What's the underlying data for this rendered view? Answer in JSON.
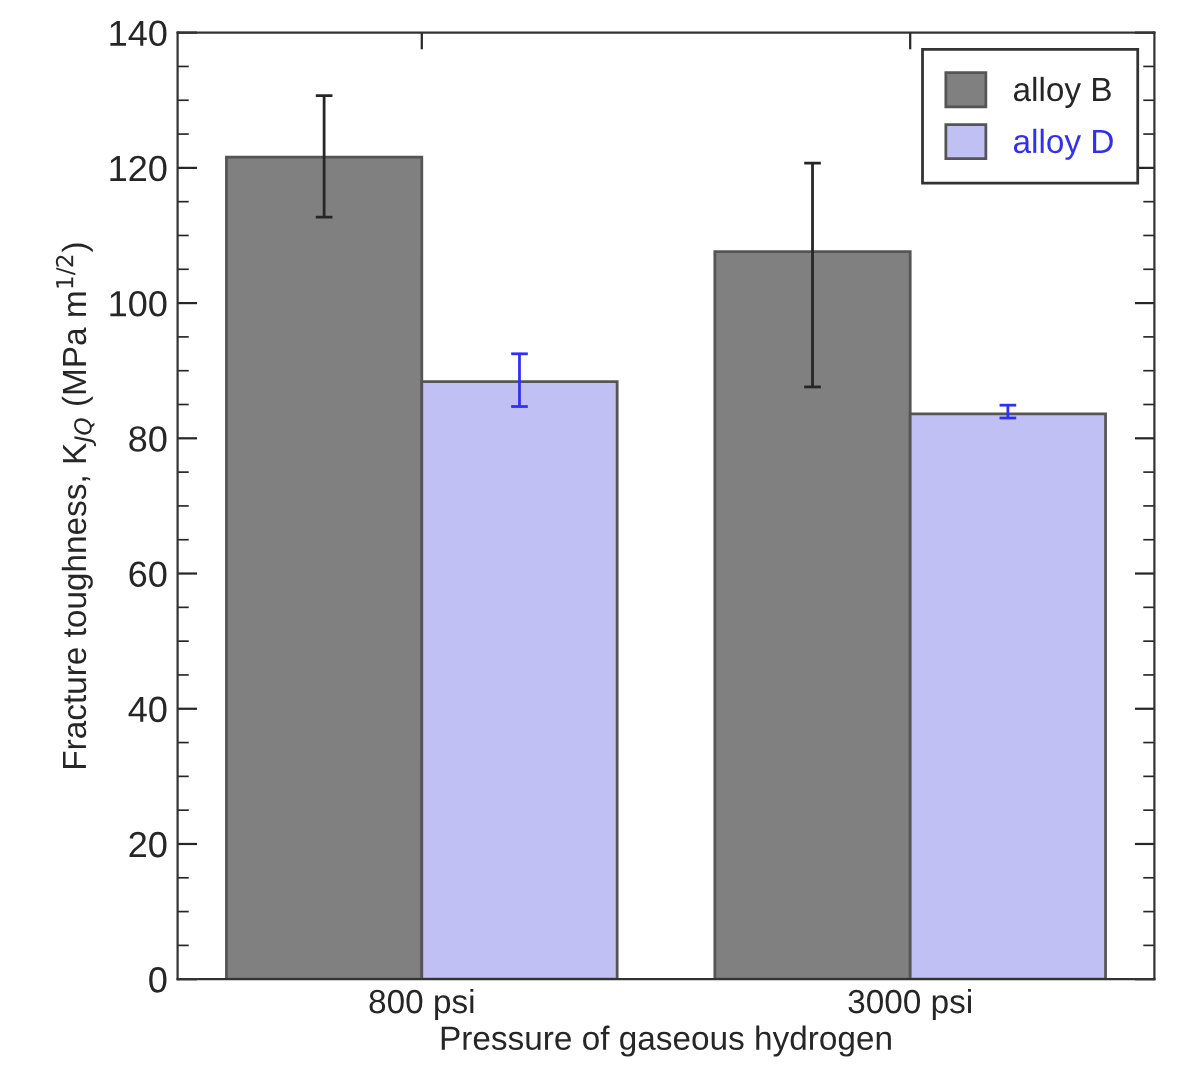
{
  "chart_data": {
    "type": "bar",
    "xlabel": "Pressure of gaseous hydrogen",
    "ylabel": "Fracture toughness, K$_{JQ}$ (MPa m$^{1/2}$)",
    "categories": [
      "800 psi",
      "3000 psi"
    ],
    "series": [
      {
        "name": "alloy B",
        "color": "#808080",
        "values": [
          121.6,
          107.6
        ],
        "errors": [
          [
            112.7,
            130.7
          ],
          [
            87.6,
            120.7
          ]
        ]
      },
      {
        "name": "alloy D",
        "color": "#c0c0f5",
        "values": [
          88.4,
          83.6
        ],
        "errors": [
          [
            84.7,
            92.5
          ],
          [
            83,
            84.9
          ]
        ]
      }
    ],
    "ylim": [
      0,
      140
    ],
    "yticks": [
      0,
      20,
      40,
      60,
      80,
      100,
      120,
      140
    ],
    "grid": false,
    "legend": "top right"
  }
}
